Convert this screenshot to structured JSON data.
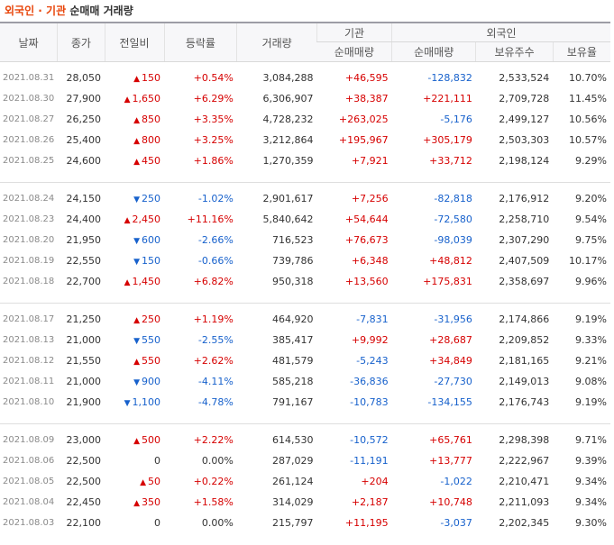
{
  "title": {
    "part1": "외국인 · 기관",
    "part2": "순매매 거래량"
  },
  "headers": {
    "date": "날짜",
    "close": "종가",
    "change": "전일비",
    "rate": "등락률",
    "volume": "거래량",
    "inst_group": "기관",
    "foreign_group": "외국인",
    "inst_net": "순매매량",
    "foreign_net": "순매매량",
    "foreign_shares": "보유주수",
    "foreign_ratio": "보유율"
  },
  "groups": [
    [
      {
        "date": "2021.08.31",
        "close": "28,050",
        "dir": "up",
        "change": "150",
        "rate": "+0.54%",
        "volume": "3,084,288",
        "inst": "+46,595",
        "foreign": "-128,832",
        "shares": "2,533,524",
        "ratio": "10.70%"
      },
      {
        "date": "2021.08.30",
        "close": "27,900",
        "dir": "up",
        "change": "1,650",
        "rate": "+6.29%",
        "volume": "6,306,907",
        "inst": "+38,387",
        "foreign": "+221,111",
        "shares": "2,709,728",
        "ratio": "11.45%"
      },
      {
        "date": "2021.08.27",
        "close": "26,250",
        "dir": "up",
        "change": "850",
        "rate": "+3.35%",
        "volume": "4,728,232",
        "inst": "+263,025",
        "foreign": "-5,176",
        "shares": "2,499,127",
        "ratio": "10.56%"
      },
      {
        "date": "2021.08.26",
        "close": "25,400",
        "dir": "up",
        "change": "800",
        "rate": "+3.25%",
        "volume": "3,212,864",
        "inst": "+195,967",
        "foreign": "+305,179",
        "shares": "2,503,303",
        "ratio": "10.57%"
      },
      {
        "date": "2021.08.25",
        "close": "24,600",
        "dir": "up",
        "change": "450",
        "rate": "+1.86%",
        "volume": "1,270,359",
        "inst": "+7,921",
        "foreign": "+33,712",
        "shares": "2,198,124",
        "ratio": "9.29%"
      }
    ],
    [
      {
        "date": "2021.08.24",
        "close": "24,150",
        "dir": "dn",
        "change": "250",
        "rate": "-1.02%",
        "volume": "2,901,617",
        "inst": "+7,256",
        "foreign": "-82,818",
        "shares": "2,176,912",
        "ratio": "9.20%"
      },
      {
        "date": "2021.08.23",
        "close": "24,400",
        "dir": "up",
        "change": "2,450",
        "rate": "+11.16%",
        "volume": "5,840,642",
        "inst": "+54,644",
        "foreign": "-72,580",
        "shares": "2,258,710",
        "ratio": "9.54%"
      },
      {
        "date": "2021.08.20",
        "close": "21,950",
        "dir": "dn",
        "change": "600",
        "rate": "-2.66%",
        "volume": "716,523",
        "inst": "+76,673",
        "foreign": "-98,039",
        "shares": "2,307,290",
        "ratio": "9.75%"
      },
      {
        "date": "2021.08.19",
        "close": "22,550",
        "dir": "dn",
        "change": "150",
        "rate": "-0.66%",
        "volume": "739,786",
        "inst": "+6,348",
        "foreign": "+48,812",
        "shares": "2,407,509",
        "ratio": "10.17%"
      },
      {
        "date": "2021.08.18",
        "close": "22,700",
        "dir": "up",
        "change": "1,450",
        "rate": "+6.82%",
        "volume": "950,318",
        "inst": "+13,560",
        "foreign": "+175,831",
        "shares": "2,358,697",
        "ratio": "9.96%"
      }
    ],
    [
      {
        "date": "2021.08.17",
        "close": "21,250",
        "dir": "up",
        "change": "250",
        "rate": "+1.19%",
        "volume": "464,920",
        "inst": "-7,831",
        "foreign": "-31,956",
        "shares": "2,174,866",
        "ratio": "9.19%"
      },
      {
        "date": "2021.08.13",
        "close": "21,000",
        "dir": "dn",
        "change": "550",
        "rate": "-2.55%",
        "volume": "385,417",
        "inst": "+9,992",
        "foreign": "+28,687",
        "shares": "2,209,852",
        "ratio": "9.33%"
      },
      {
        "date": "2021.08.12",
        "close": "21,550",
        "dir": "up",
        "change": "550",
        "rate": "+2.62%",
        "volume": "481,579",
        "inst": "-5,243",
        "foreign": "+34,849",
        "shares": "2,181,165",
        "ratio": "9.21%"
      },
      {
        "date": "2021.08.11",
        "close": "21,000",
        "dir": "dn",
        "change": "900",
        "rate": "-4.11%",
        "volume": "585,218",
        "inst": "-36,836",
        "foreign": "-27,730",
        "shares": "2,149,013",
        "ratio": "9.08%"
      },
      {
        "date": "2021.08.10",
        "close": "21,900",
        "dir": "dn",
        "change": "1,100",
        "rate": "-4.78%",
        "volume": "791,167",
        "inst": "-10,783",
        "foreign": "-134,155",
        "shares": "2,176,743",
        "ratio": "9.19%"
      }
    ],
    [
      {
        "date": "2021.08.09",
        "close": "23,000",
        "dir": "up",
        "change": "500",
        "rate": "+2.22%",
        "volume": "614,530",
        "inst": "-10,572",
        "foreign": "+65,761",
        "shares": "2,298,398",
        "ratio": "9.71%"
      },
      {
        "date": "2021.08.06",
        "close": "22,500",
        "dir": "none",
        "change": "0",
        "rate": "0.00%",
        "volume": "287,029",
        "inst": "-11,191",
        "foreign": "+13,777",
        "shares": "2,222,967",
        "ratio": "9.39%"
      },
      {
        "date": "2021.08.05",
        "close": "22,500",
        "dir": "up",
        "change": "50",
        "rate": "+0.22%",
        "volume": "261,124",
        "inst": "+204",
        "foreign": "-1,022",
        "shares": "2,210,471",
        "ratio": "9.34%"
      },
      {
        "date": "2021.08.04",
        "close": "22,450",
        "dir": "up",
        "change": "350",
        "rate": "+1.58%",
        "volume": "314,029",
        "inst": "+2,187",
        "foreign": "+10,748",
        "shares": "2,211,093",
        "ratio": "9.34%"
      },
      {
        "date": "2021.08.03",
        "close": "22,100",
        "dir": "none",
        "change": "0",
        "rate": "0.00%",
        "volume": "215,797",
        "inst": "+11,195",
        "foreign": "-3,037",
        "shares": "2,202,345",
        "ratio": "9.30%"
      }
    ]
  ],
  "icons": {
    "up": "up-triangle-icon",
    "dn": "down-triangle-icon"
  },
  "colors": {
    "up": "#d60000",
    "down": "#1761cc",
    "title_accent": "#e8450a"
  }
}
